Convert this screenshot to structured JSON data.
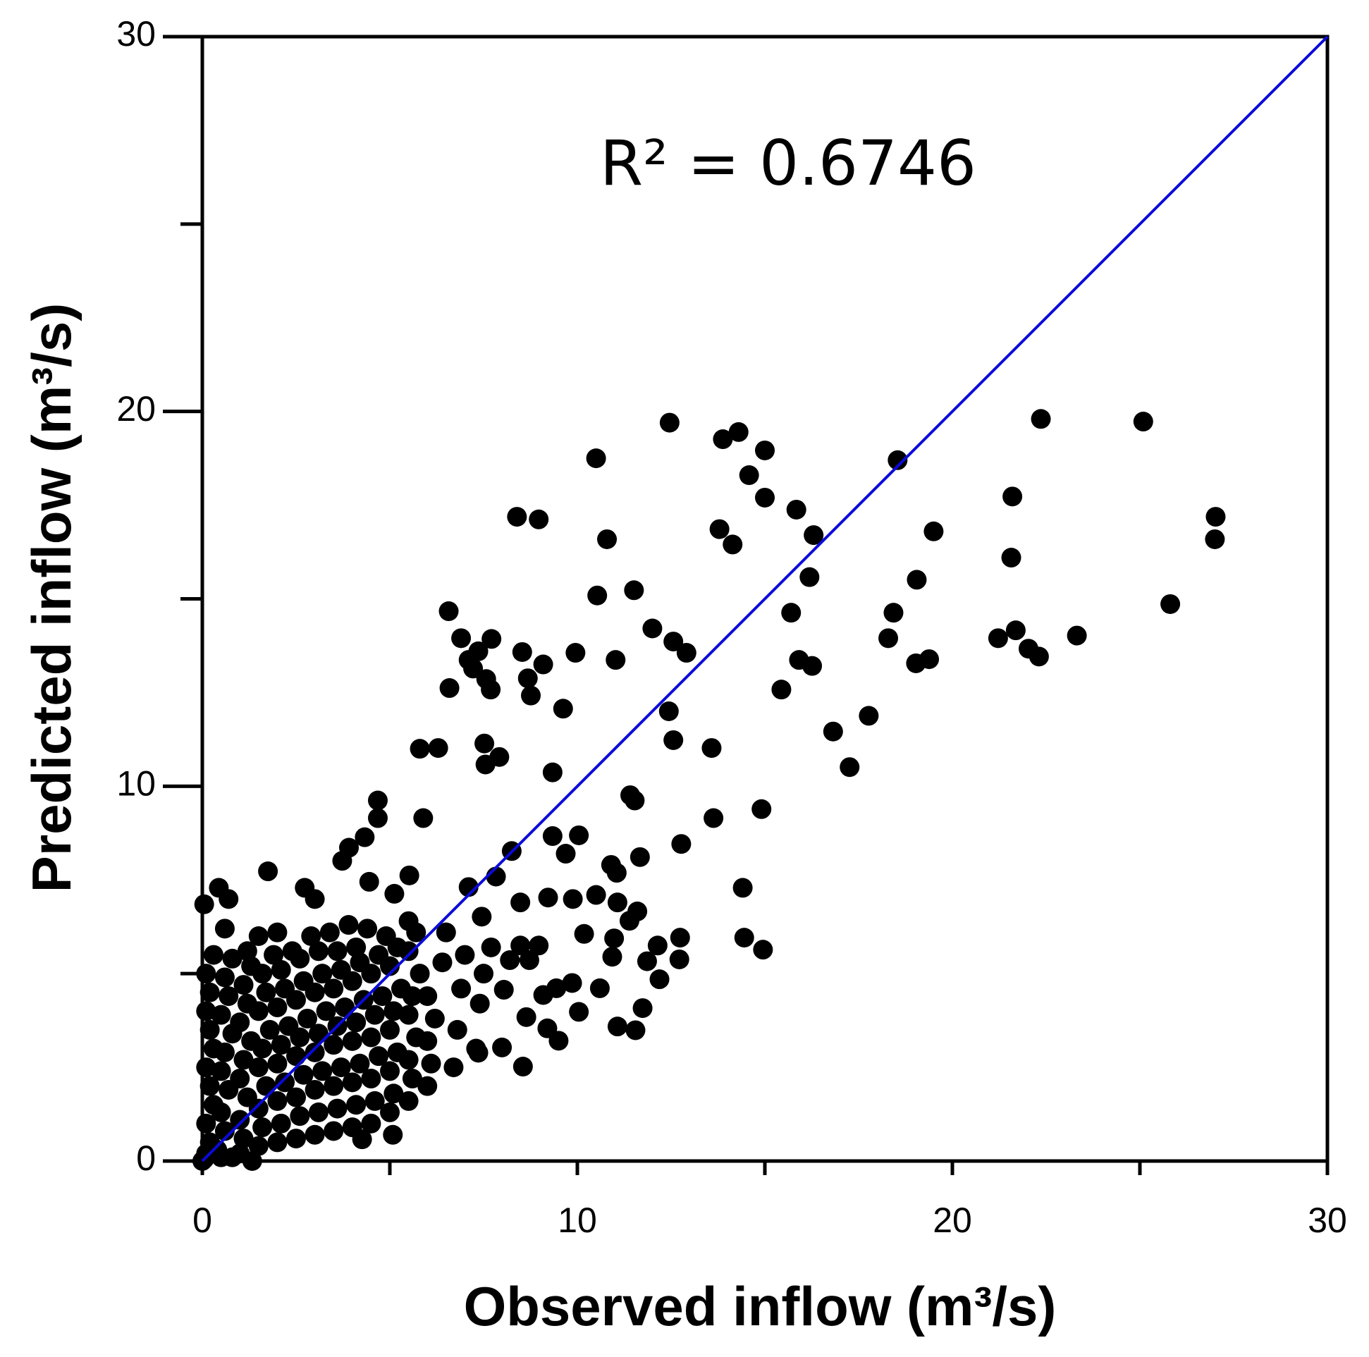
{
  "chart_data": {
    "type": "scatter",
    "x_label": "Observed inflow (m³/s)",
    "y_label": "Predicted inflow (m³/s)",
    "annotation": "R² = 0.6746",
    "color": "#000000",
    "diagonal": true,
    "diagonal_color": "#0b0bd9",
    "xlim": [
      0,
      30
    ],
    "ylim": [
      0,
      30
    ],
    "xticks": [
      0,
      10,
      20,
      30
    ],
    "yticks": [
      0,
      10,
      20,
      30
    ],
    "xminorticks": [
      5,
      15,
      25
    ],
    "yminorticks": [
      5,
      15,
      25
    ],
    "x": [
      12.46,
      22.36,
      25.09,
      14.3,
      13.88,
      15.0,
      10.5,
      18.54,
      14.58,
      15.0,
      21.6,
      15.84,
      8.39,
      8.97,
      27.02,
      13.79,
      19.5,
      16.3,
      10.79,
      27.0,
      14.14,
      21.57,
      16.19,
      19.05,
      10.53,
      11.51,
      25.81,
      6.57,
      15.7,
      18.43,
      12.0,
      21.69,
      23.32,
      6.9,
      7.71,
      18.29,
      21.22,
      12.56,
      12.91,
      8.53,
      9.95,
      22.03,
      22.31,
      7.36,
      7.1,
      11.02,
      15.91,
      19.38,
      19.03,
      9.09,
      16.26,
      7.22,
      8.68,
      7.57,
      7.69,
      6.59,
      15.44,
      8.76,
      9.62,
      12.44,
      17.77,
      16.82,
      12.56,
      7.52,
      5.8,
      6.29,
      13.58,
      7.92,
      7.55,
      17.26,
      9.34,
      11.41,
      11.53,
      4.68,
      14.91,
      5.89,
      13.63,
      4.68,
      4.33,
      9.34,
      10.04,
      3.91,
      12.77,
      8.25,
      3.73,
      9.69,
      11.67,
      1.75,
      10.9,
      11.05,
      4.45,
      5.52,
      7.83,
      14.41,
      0.44,
      2.73,
      5.12,
      7.1,
      3.0,
      0.7,
      0.05,
      9.22,
      9.88,
      10.5,
      8.48,
      11.07,
      7.45,
      11.6,
      11.39,
      14.45,
      14.95,
      12.74,
      10.18,
      10.98,
      8.48,
      8.97,
      12.14,
      12.72,
      11.86,
      8.2,
      8.72,
      10.93,
      8.04,
      9.44,
      12.19,
      10.6,
      9.86,
      9.09,
      11.74,
      8.64,
      10.04,
      11.07,
      11.55,
      9.2,
      9.5,
      7.99,
      7.36,
      8.55,
      0.1,
      0.2,
      0.1,
      0.3,
      0.2,
      0.1,
      0.3,
      0.2,
      0.1,
      0.2,
      0.1,
      0.3,
      0.5,
      0.6,
      0.5,
      0.7,
      0.5,
      0.6,
      0.8,
      0.5,
      0.7,
      0.6,
      0.8,
      0.6,
      1.0,
      1.1,
      1.0,
      1.2,
      1.0,
      1.1,
      1.3,
      1.0,
      1.2,
      1.1,
      1.3,
      1.2,
      1.5,
      1.5,
      1.6,
      1.5,
      1.7,
      1.5,
      1.6,
      1.8,
      1.5,
      1.7,
      1.6,
      1.9,
      2.0,
      2.0,
      2.1,
      2.0,
      2.2,
      2.0,
      2.1,
      2.3,
      2.0,
      2.2,
      2.1,
      2.4,
      2.5,
      2.6,
      2.5,
      2.7,
      2.5,
      2.6,
      2.8,
      2.5,
      2.7,
      2.6,
      2.9,
      3.0,
      3.1,
      3.0,
      3.2,
      3.0,
      3.1,
      3.3,
      3.0,
      3.2,
      3.1,
      3.4,
      3.5,
      3.6,
      3.5,
      3.7,
      3.5,
      3.6,
      3.8,
      3.5,
      3.7,
      3.6,
      3.9,
      4.0,
      4.1,
      4.0,
      4.2,
      4.0,
      4.1,
      4.3,
      4.0,
      4.2,
      4.1,
      4.4,
      4.5,
      4.6,
      4.5,
      4.7,
      4.5,
      4.6,
      4.8,
      4.5,
      4.7,
      4.9,
      5.0,
      5.1,
      5.0,
      5.2,
      5.0,
      5.1,
      5.3,
      5.0,
      5.2,
      5.5,
      5.5,
      5.6,
      5.5,
      5.7,
      5.5,
      5.6,
      5.8,
      5.5,
      5.7,
      6.0,
      6.1,
      6.0,
      6.2,
      6.0,
      6.4,
      6.5,
      6.7,
      6.8,
      6.9,
      7.0,
      7.3,
      7.4,
      7.5,
      7.7,
      0.05,
      0.4,
      1.33,
      0.8,
      4.26,
      5.08,
      0.0
    ],
    "values": [
      19.7,
      19.8,
      19.73,
      19.45,
      19.26,
      18.96,
      18.75,
      18.7,
      18.3,
      17.7,
      17.73,
      17.38,
      17.19,
      17.12,
      17.19,
      16.86,
      16.8,
      16.7,
      16.59,
      16.59,
      16.45,
      16.1,
      15.58,
      15.51,
      15.09,
      15.23,
      14.86,
      14.67,
      14.63,
      14.63,
      14.21,
      14.16,
      14.02,
      13.95,
      13.93,
      13.95,
      13.95,
      13.86,
      13.56,
      13.58,
      13.56,
      13.67,
      13.46,
      13.6,
      13.37,
      13.37,
      13.37,
      13.39,
      13.28,
      13.25,
      13.21,
      13.14,
      12.88,
      12.86,
      12.58,
      12.62,
      12.58,
      12.42,
      12.07,
      12.0,
      11.88,
      11.46,
      11.23,
      11.14,
      11.0,
      11.02,
      11.02,
      10.78,
      10.58,
      10.51,
      10.37,
      9.76,
      9.62,
      9.62,
      9.39,
      9.15,
      9.15,
      9.15,
      8.64,
      8.67,
      8.69,
      8.36,
      8.46,
      8.27,
      8.01,
      8.2,
      8.11,
      7.73,
      7.9,
      7.69,
      7.45,
      7.62,
      7.59,
      7.29,
      7.29,
      7.29,
      7.13,
      7.31,
      6.99,
      6.99,
      6.85,
      7.03,
      6.99,
      7.1,
      6.9,
      6.9,
      6.52,
      6.66,
      6.41,
      5.96,
      5.64,
      5.96,
      6.06,
      5.94,
      5.75,
      5.75,
      5.75,
      5.38,
      5.33,
      5.36,
      5.36,
      5.45,
      4.57,
      4.61,
      4.85,
      4.61,
      4.75,
      4.43,
      4.08,
      3.84,
      3.98,
      3.59,
      3.49,
      3.54,
      3.21,
      3.03,
      2.89,
      2.52,
      0.2,
      0.5,
      1.0,
      1.5,
      2.0,
      2.5,
      3.0,
      3.5,
      4.0,
      4.5,
      5.0,
      5.5,
      0.1,
      0.8,
      1.3,
      1.9,
      2.4,
      2.9,
      3.4,
      3.9,
      4.4,
      4.9,
      5.4,
      6.2,
      0.2,
      0.6,
      1.1,
      1.7,
      2.2,
      2.7,
      3.2,
      3.7,
      4.2,
      4.7,
      5.2,
      5.6,
      6.0,
      0.4,
      0.9,
      1.4,
      2.0,
      2.5,
      3.0,
      3.5,
      4.0,
      4.5,
      5.0,
      5.5,
      6.1,
      0.5,
      1.0,
      1.6,
      2.1,
      2.6,
      3.1,
      3.6,
      4.1,
      4.6,
      5.1,
      5.6,
      0.6,
      1.2,
      1.7,
      2.3,
      2.8,
      3.3,
      3.8,
      4.3,
      4.8,
      5.4,
      6.0,
      0.7,
      1.3,
      1.9,
      2.4,
      2.9,
      3.4,
      4.0,
      4.5,
      5.0,
      5.6,
      6.1,
      0.8,
      1.4,
      2.0,
      2.5,
      3.1,
      3.6,
      4.1,
      4.6,
      5.1,
      5.6,
      6.3,
      0.9,
      1.5,
      2.1,
      2.6,
      3.2,
      3.7,
      4.3,
      4.8,
      5.3,
      5.7,
      6.2,
      1.0,
      1.6,
      2.2,
      2.8,
      3.3,
      3.9,
      4.4,
      5.0,
      5.5,
      6.0,
      1.3,
      1.8,
      2.4,
      2.9,
      3.5,
      4.0,
      4.6,
      5.2,
      5.7,
      6.4,
      1.6,
      2.2,
      2.7,
      3.3,
      3.9,
      4.4,
      5.0,
      5.6,
      6.1,
      2.0,
      2.6,
      3.2,
      3.8,
      4.4,
      5.3,
      6.1,
      2.5,
      3.5,
      4.6,
      5.5,
      3.0,
      4.2,
      5.0,
      5.7,
      0.05,
      0.3,
      0.0,
      0.1,
      0.58,
      0.7,
      0.0
    ]
  }
}
